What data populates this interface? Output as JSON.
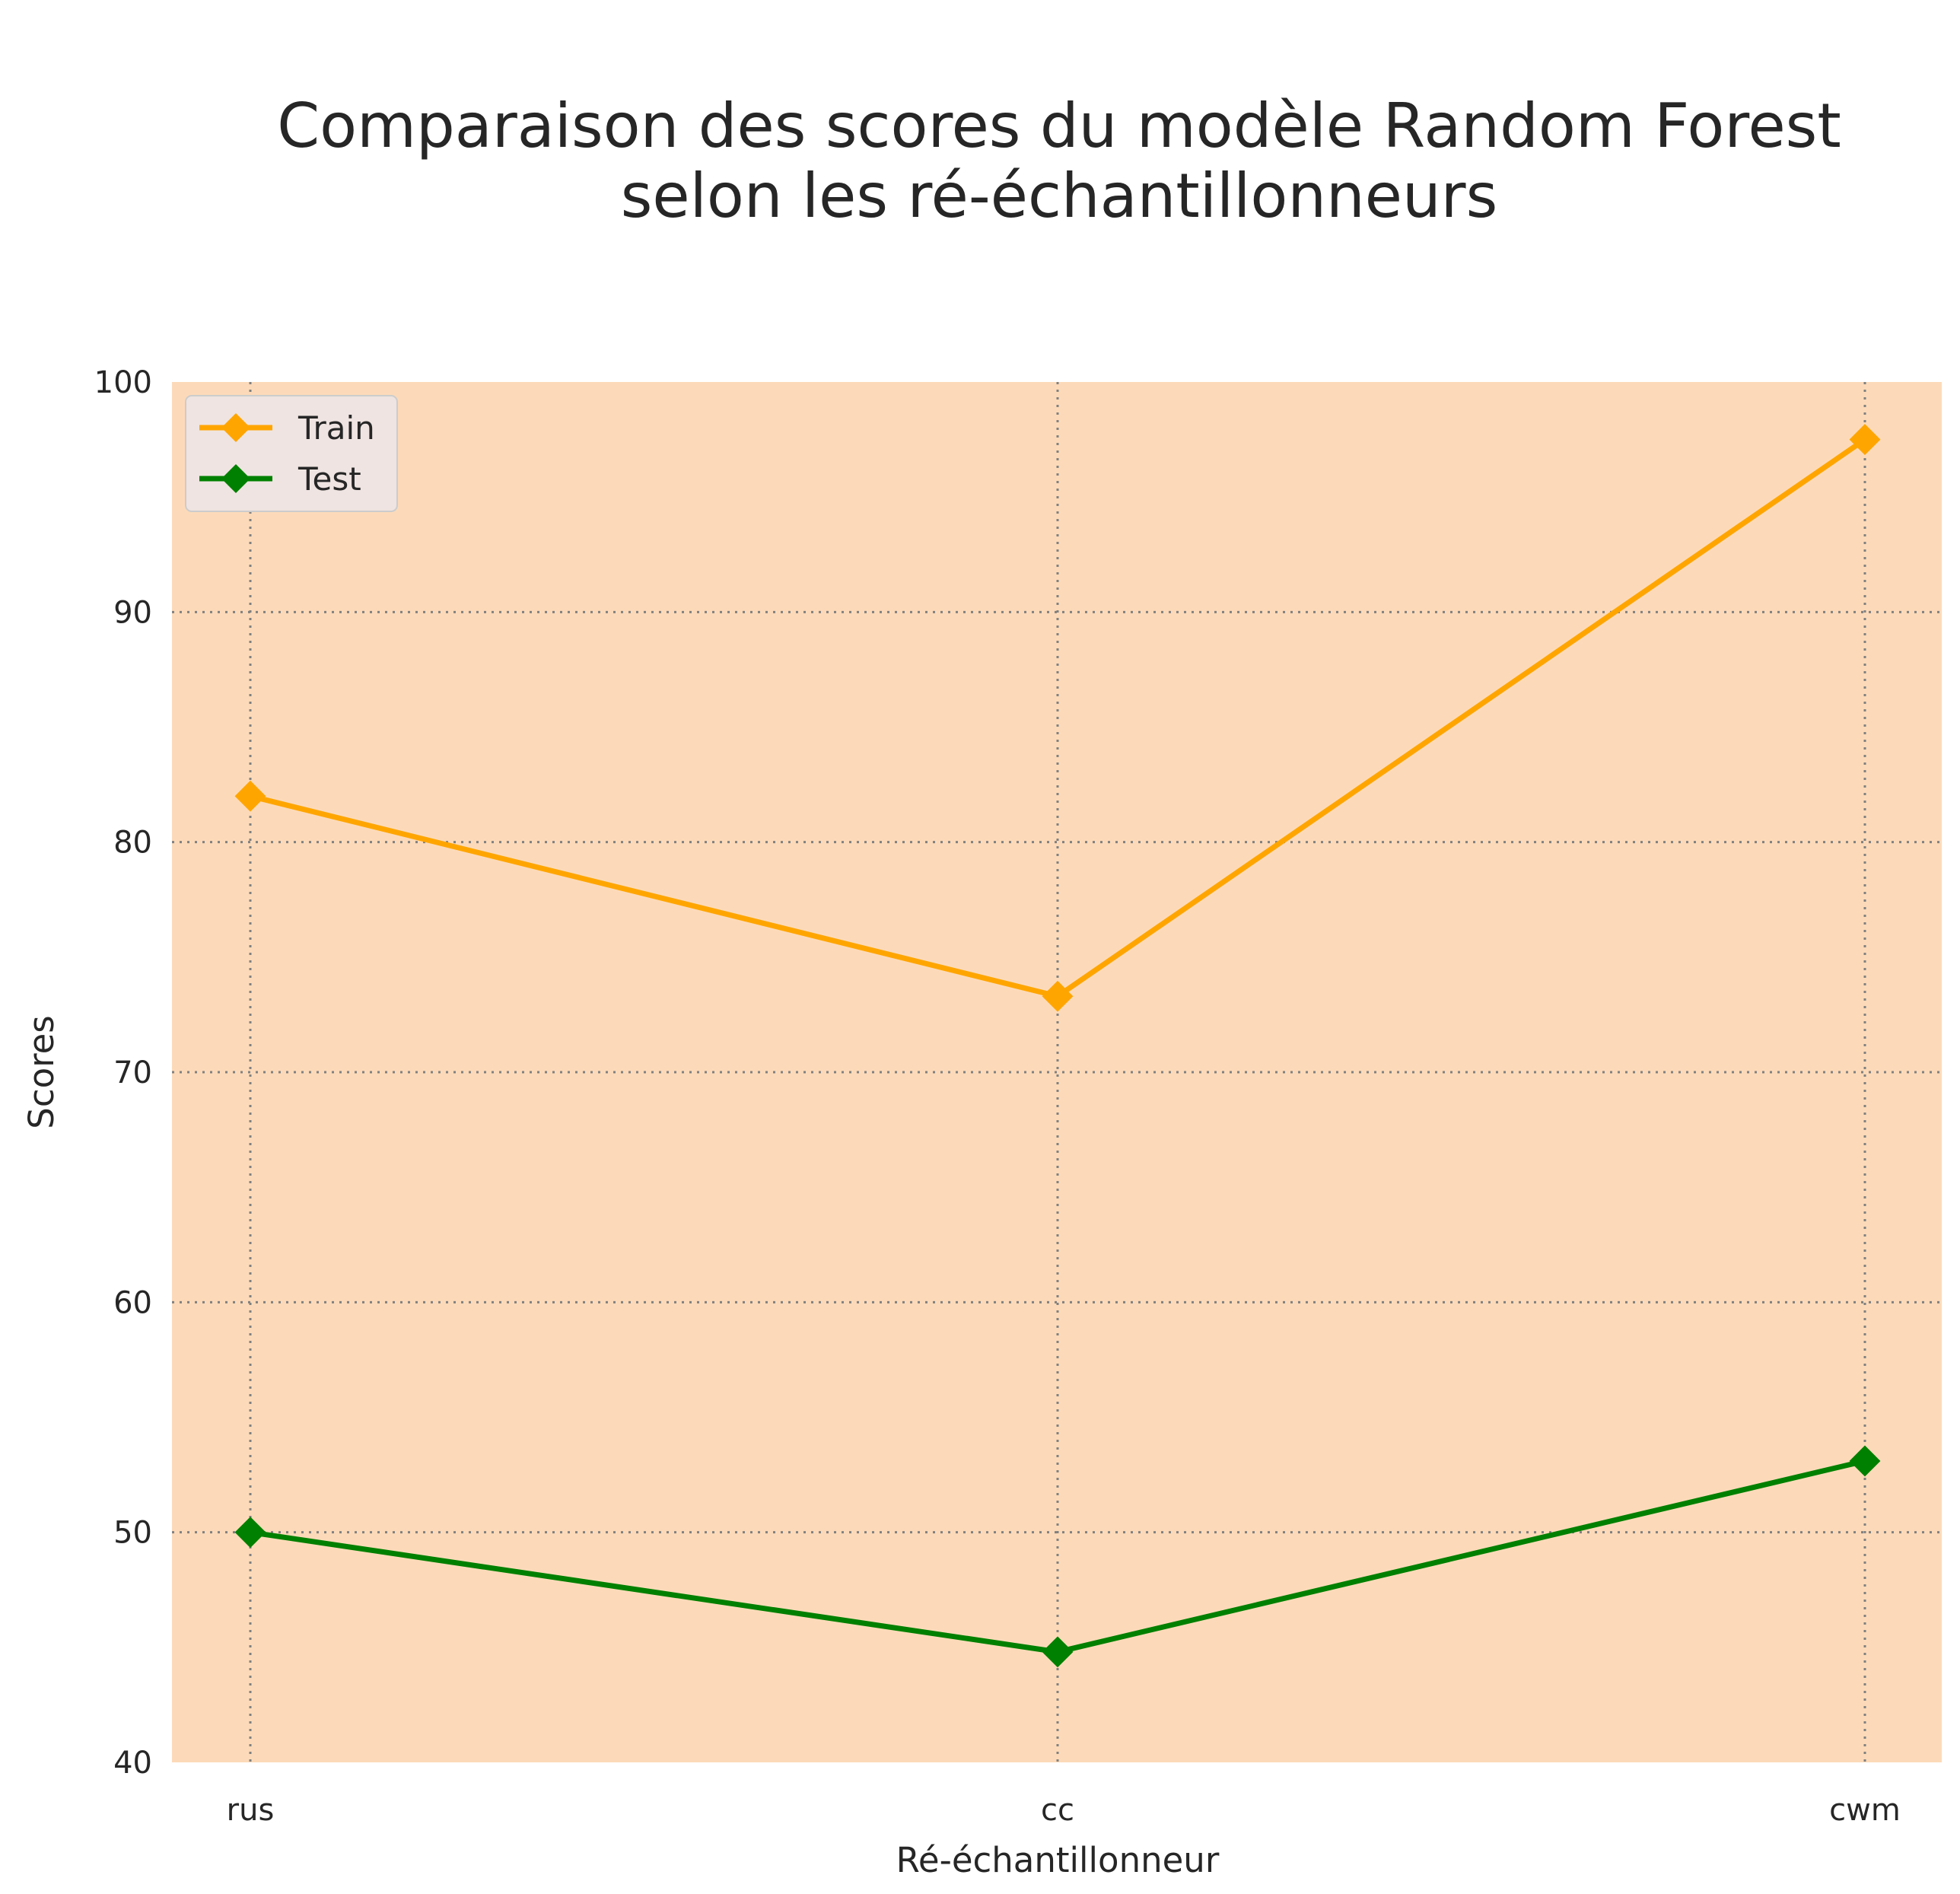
{
  "chart_data": {
    "type": "line",
    "title_lines": [
      "Comparaison des scores du modèle Random Forest",
      "selon les ré-échantillonneurs"
    ],
    "xlabel": "Ré-échantillonneur",
    "ylabel": "Scores",
    "categories": [
      "rus",
      "cc",
      "cwm"
    ],
    "ylim": [
      40,
      100
    ],
    "yticks": [
      40,
      50,
      60,
      70,
      80,
      90,
      100
    ],
    "grid": true,
    "legend_position": "upper left",
    "plot_background": "#fcdab9",
    "legend_background": "#efe4e1",
    "series": [
      {
        "name": "Train",
        "color": "#ffa500",
        "marker": "diamond",
        "values": [
          82.0,
          73.3,
          97.5
        ]
      },
      {
        "name": "Test",
        "color": "#008000",
        "marker": "diamond",
        "values": [
          50.0,
          44.8,
          53.1
        ]
      }
    ]
  }
}
